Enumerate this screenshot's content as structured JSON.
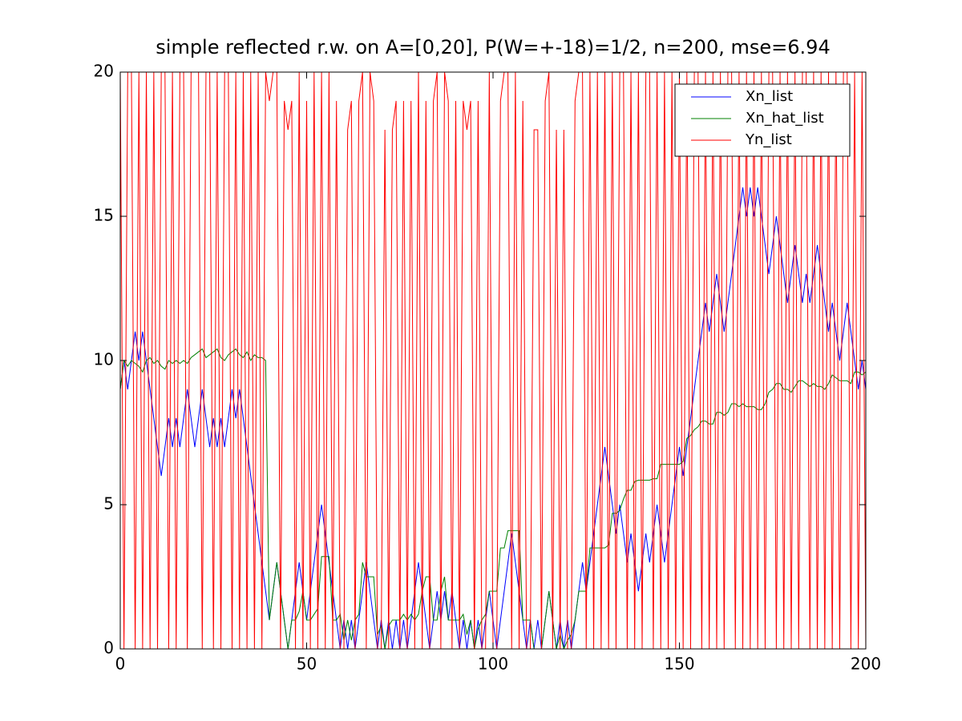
{
  "chart_data": {
    "type": "line",
    "title": "simple reflected r.w. on A=[0,20], P(W=+-18)=1/2, n=200, mse=6.94",
    "x": [
      0,
      1,
      2,
      3,
      4,
      5,
      6,
      7,
      8,
      9,
      10,
      11,
      12,
      13,
      14,
      15,
      16,
      17,
      18,
      19,
      20,
      21,
      22,
      23,
      24,
      25,
      26,
      27,
      28,
      29,
      30,
      31,
      32,
      33,
      34,
      35,
      36,
      37,
      38,
      39,
      40,
      41,
      42,
      43,
      44,
      45,
      46,
      47,
      48,
      49,
      50,
      51,
      52,
      53,
      54,
      55,
      56,
      57,
      58,
      59,
      60,
      61,
      62,
      63,
      64,
      65,
      66,
      67,
      68,
      69,
      70,
      71,
      72,
      73,
      74,
      75,
      76,
      77,
      78,
      79,
      80,
      81,
      82,
      83,
      84,
      85,
      86,
      87,
      88,
      89,
      90,
      91,
      92,
      93,
      94,
      95,
      96,
      97,
      98,
      99,
      100,
      101,
      102,
      103,
      104,
      105,
      106,
      107,
      108,
      109,
      110,
      111,
      112,
      113,
      114,
      115,
      116,
      117,
      118,
      119,
      120,
      121,
      122,
      123,
      124,
      125,
      126,
      127,
      128,
      129,
      130,
      131,
      132,
      133,
      134,
      135,
      136,
      137,
      138,
      139,
      140,
      141,
      142,
      143,
      144,
      145,
      146,
      147,
      148,
      149,
      150,
      151,
      152,
      153,
      154,
      155,
      156,
      157,
      158,
      159,
      160,
      161,
      162,
      163,
      164,
      165,
      166,
      167,
      168,
      169,
      170,
      171,
      172,
      173,
      174,
      175,
      176,
      177,
      178,
      179,
      180,
      181,
      182,
      183,
      184,
      185,
      186,
      187,
      188,
      189,
      190,
      191,
      192,
      193,
      194,
      195,
      196,
      197,
      198,
      199,
      200
    ],
    "series": [
      {
        "name": "Xn_list",
        "color": "#0000ff",
        "values": [
          9,
          10,
          9,
          10,
          11,
          10,
          11,
          10,
          9,
          8,
          7,
          6,
          7,
          8,
          7,
          8,
          7,
          8,
          9,
          8,
          7,
          8,
          9,
          8,
          7,
          8,
          7,
          8,
          7,
          8,
          9,
          8,
          9,
          8,
          7,
          6,
          5,
          4,
          3,
          2,
          1,
          2,
          3,
          2,
          1,
          0,
          1,
          2,
          3,
          2,
          1,
          2,
          3,
          4,
          5,
          4,
          3,
          2,
          1,
          0,
          1,
          0,
          1,
          0,
          1,
          2,
          3,
          2,
          1,
          0,
          1,
          0,
          1,
          0,
          1,
          0,
          1,
          0,
          1,
          2,
          3,
          2,
          1,
          0,
          1,
          2,
          1,
          2,
          1,
          2,
          1,
          0,
          1,
          0,
          1,
          0,
          1,
          0,
          1,
          2,
          1,
          0,
          1,
          2,
          3,
          4,
          3,
          2,
          1,
          0,
          1,
          0,
          1,
          0,
          1,
          2,
          1,
          0,
          1,
          0,
          1,
          0,
          1,
          2,
          3,
          2,
          3,
          4,
          5,
          6,
          7,
          6,
          5,
          4,
          5,
          4,
          3,
          4,
          3,
          2,
          3,
          4,
          3,
          4,
          5,
          4,
          3,
          4,
          5,
          6,
          7,
          6,
          7,
          8,
          9,
          10,
          11,
          12,
          11,
          12,
          13,
          12,
          11,
          12,
          13,
          14,
          15,
          16,
          15,
          16,
          15,
          16,
          15,
          14,
          13,
          14,
          15,
          14,
          13,
          12,
          13,
          14,
          13,
          12,
          13,
          12,
          13,
          14,
          13,
          12,
          11,
          12,
          11,
          10,
          11,
          12,
          11,
          10,
          9,
          10,
          9
        ]
      },
      {
        "name": "Xn_hat_list",
        "color": "#008000",
        "values": [
          9,
          10,
          9.8,
          10,
          9.9,
          9.8,
          9.6,
          10,
          10.1,
          9.9,
          10,
          9.8,
          9.7,
          10,
          9.9,
          10,
          9.9,
          10,
          9.9,
          10.1,
          10.2,
          10.3,
          10.4,
          10.1,
          10.2,
          10.3,
          10.4,
          10.1,
          10,
          10.2,
          10.3,
          10.4,
          10.2,
          10.1,
          10.3,
          10,
          10.2,
          10.1,
          10.1,
          10,
          1,
          2,
          3,
          2,
          1,
          0,
          1,
          1,
          1.3,
          2,
          1,
          1,
          1.2,
          1.4,
          3.2,
          3.2,
          3.2,
          1,
          1,
          1.2,
          0.3,
          1,
          0.3,
          1,
          1.2,
          3,
          2.5,
          2.5,
          2.5,
          0.5,
          0.8,
          0,
          0.8,
          1,
          1,
          1,
          1.2,
          1,
          1.2,
          1,
          1.2,
          2,
          2.5,
          2.5,
          1,
          1,
          2,
          2.5,
          1,
          1,
          1,
          1,
          1.2,
          0.5,
          1,
          0,
          0.7,
          1,
          1.2,
          2,
          2,
          2,
          3.5,
          3.5,
          4.1,
          4.1,
          4.1,
          4.1,
          1,
          1,
          1,
          0,
          0,
          0,
          1,
          2,
          1,
          0,
          0.5,
          0,
          0.3,
          0.5,
          1,
          2,
          2,
          2,
          3.5,
          3.5,
          3.5,
          3.5,
          3.5,
          3.6,
          4.7,
          4.7,
          4.8,
          5.2,
          5.5,
          5.5,
          5.8,
          5.85,
          5.85,
          5.85,
          5.85,
          5.9,
          5.9,
          6.4,
          6.4,
          6.4,
          6.4,
          6.4,
          6.4,
          6.5,
          7.3,
          7.4,
          7.6,
          7.7,
          7.9,
          7.9,
          7.8,
          7.8,
          8.2,
          8.2,
          8.1,
          8.2,
          8.5,
          8.5,
          8.4,
          8.5,
          8.4,
          8.4,
          8.4,
          8.3,
          8.3,
          8.5,
          8.9,
          9,
          9.2,
          9.2,
          9,
          9,
          8.9,
          9.1,
          9.3,
          9.3,
          9.2,
          9.1,
          9.2,
          9.1,
          9.1,
          9,
          9.2,
          9.5,
          9.4,
          9.3,
          9.3,
          9.3,
          9.2,
          9.6,
          9.6,
          9.5,
          9.6
        ]
      },
      {
        "name": "Yn_list",
        "color": "#ff0000",
        "values": [
          20,
          0,
          20,
          20,
          0,
          20,
          0,
          20,
          0,
          20,
          0,
          20,
          20,
          0,
          20,
          0,
          20,
          20,
          0,
          20,
          20,
          20,
          0,
          20,
          20,
          0,
          20,
          0,
          20,
          20,
          0,
          20,
          0,
          20,
          0,
          20,
          0,
          20,
          0,
          20,
          19,
          20,
          20,
          0,
          19,
          18,
          19,
          0,
          20,
          0,
          19,
          0,
          20,
          0,
          20,
          0,
          20,
          0,
          19,
          0,
          0,
          18,
          19,
          0,
          19,
          20,
          0,
          20,
          19,
          0,
          0,
          18,
          0,
          18,
          19,
          0,
          19,
          0,
          19,
          0,
          20,
          0,
          19,
          0,
          19,
          20,
          0,
          20,
          19,
          0,
          19,
          0,
          19,
          18,
          19,
          0,
          19,
          0,
          0,
          20,
          0,
          0,
          19,
          20,
          20,
          0,
          20,
          0,
          19,
          0,
          0,
          18,
          18,
          0,
          19,
          20,
          0,
          18,
          0,
          18,
          0,
          0,
          19,
          20,
          20,
          0,
          20,
          0,
          20,
          0,
          20,
          0,
          20,
          0,
          20,
          20,
          0,
          20,
          0,
          20,
          0,
          20,
          20,
          0,
          20,
          0,
          20,
          0,
          20,
          0,
          20,
          0,
          20,
          0,
          20,
          20,
          0,
          20,
          0,
          20,
          0,
          20,
          0,
          20,
          20,
          0,
          20,
          0,
          20,
          0,
          20,
          0,
          20,
          0,
          20,
          20,
          0,
          20,
          0,
          20,
          0,
          20,
          0,
          20,
          20,
          0,
          20,
          0,
          20,
          0,
          20,
          0,
          20,
          0,
          20,
          20,
          0,
          20,
          0,
          20,
          0
        ]
      }
    ],
    "xlim": [
      0,
      200
    ],
    "xticks": [
      0,
      50,
      100,
      150,
      200
    ],
    "ylim": [
      0,
      20
    ],
    "yticks": [
      0,
      5,
      10,
      15,
      20
    ],
    "legend": "upper right"
  }
}
